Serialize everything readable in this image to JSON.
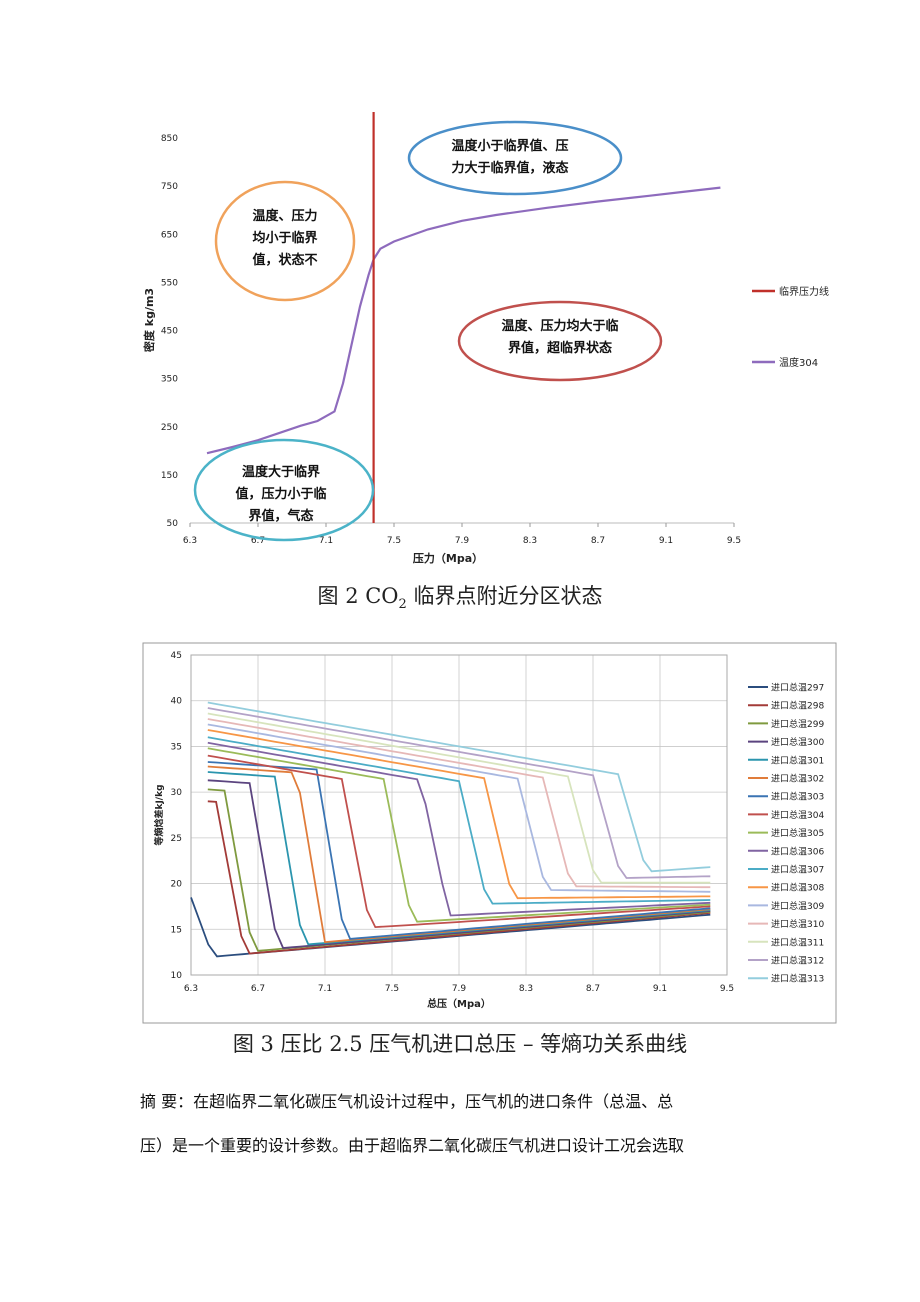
{
  "figure2": {
    "caption_prefix": "图 2 CO",
    "caption_sub": "2",
    "caption_suffix": " 临界点附近分区状态",
    "chart_data": {
      "type": "line",
      "xlabel": "压力（Mpa）",
      "ylabel": "密度 kg/m3",
      "xlim": [
        6.3,
        9.5
      ],
      "ylim": [
        50,
        900
      ],
      "xticks": [
        "6.3",
        "6.7",
        "7.1",
        "7.5",
        "7.9",
        "8.3",
        "8.7",
        "9.1",
        "9.5"
      ],
      "yticks": [
        "50",
        "150",
        "250",
        "350",
        "450",
        "550",
        "650",
        "750",
        "850"
      ],
      "series": [
        {
          "name": "温度304",
          "color": "#8e6bbd",
          "x": [
            6.4,
            6.55,
            6.7,
            6.85,
            6.95,
            7.05,
            7.15,
            7.2,
            7.25,
            7.3,
            7.35,
            7.38,
            7.42,
            7.5,
            7.7,
            7.9,
            8.1,
            8.4,
            8.7,
            9.0,
            9.2,
            9.42
          ],
          "y": [
            195,
            208,
            222,
            240,
            252,
            262,
            282,
            340,
            420,
            500,
            565,
            598,
            620,
            635,
            660,
            678,
            690,
            705,
            718,
            730,
            738,
            747
          ]
        },
        {
          "name": "临界压力线",
          "color": "#c0302a",
          "vertical_x": 7.38
        }
      ],
      "legend_position": "right",
      "annotations": [
        {
          "lines": [
            "温度小于临界值、压",
            "力大于临界值，液态"
          ],
          "color": "#4a8fc9"
        },
        {
          "lines": [
            "温度、压力",
            "均小于临界",
            "值，状态不"
          ],
          "color": "#f0a25b"
        },
        {
          "lines": [
            "温度、压力均大于临",
            "界值，超临界状态"
          ],
          "color": "#c0504d"
        },
        {
          "lines": [
            "温度大于临界",
            "值，压力小于临",
            "界值，气态"
          ],
          "color": "#4bb3c8"
        }
      ]
    }
  },
  "figure3": {
    "caption": "图 3 压比 2.5 压气机进口总压 – 等熵功关系曲线",
    "chart_data": {
      "type": "line",
      "xlabel": "总压（Mpa）",
      "ylabel": "等熵焓差kJ/kg",
      "xlim": [
        6.3,
        9.5
      ],
      "ylim": [
        10,
        45
      ],
      "xticks": [
        "6.3",
        "6.7",
        "7.1",
        "7.5",
        "7.9",
        "8.3",
        "8.7",
        "9.1",
        "9.5"
      ],
      "yticks": [
        "10",
        "15",
        "20",
        "25",
        "30",
        "35",
        "40",
        "45"
      ],
      "grid": true,
      "legend_position": "right",
      "series": [
        {
          "name": "进口总温297",
          "color": "#2b4d7e",
          "start": 20.5,
          "drop": 6.31,
          "cliff": 12.0,
          "end": 16.6
        },
        {
          "name": "进口总温298",
          "color": "#a33b38",
          "start": 29.0,
          "drop": 6.5,
          "cliff": 12.3,
          "end": 16.8
        },
        {
          "name": "进口总温299",
          "color": "#7f9a3f",
          "start": 30.3,
          "drop": 6.55,
          "cliff": 12.6,
          "end": 16.9
        },
        {
          "name": "进口总温300",
          "color": "#5b447f",
          "start": 31.3,
          "drop": 6.7,
          "cliff": 12.9,
          "end": 17.0
        },
        {
          "name": "进口总温301",
          "color": "#2b95ae",
          "start": 32.2,
          "drop": 6.85,
          "cliff": 13.3,
          "end": 17.1
        },
        {
          "name": "进口总温302",
          "color": "#e07c3a",
          "start": 32.8,
          "drop": 6.98,
          "cliff": 13.6,
          "end": 17.2
        },
        {
          "name": "进口总温303",
          "color": "#3a74b3",
          "start": 33.3,
          "drop": 7.1,
          "cliff": 13.9,
          "end": 17.3
        },
        {
          "name": "进口总温304",
          "color": "#c0504d",
          "start": 34.0,
          "drop": 7.25,
          "cliff": 15.2,
          "end": 17.5
        },
        {
          "name": "进口总温305",
          "color": "#9bbb59",
          "start": 34.8,
          "drop": 7.5,
          "cliff": 15.8,
          "end": 17.7
        },
        {
          "name": "进口总温306",
          "color": "#8064a2",
          "start": 35.4,
          "drop": 7.72,
          "cliff": 16.5,
          "end": 17.9
        },
        {
          "name": "进口总温307",
          "color": "#4bacc6",
          "start": 36.0,
          "drop": 7.95,
          "cliff": 17.8,
          "end": 18.2
        },
        {
          "name": "进口总温308",
          "color": "#f79646",
          "start": 36.8,
          "drop": 8.1,
          "cliff": 18.4,
          "end": 18.6
        },
        {
          "name": "进口总温309",
          "color": "#a9b8e0",
          "start": 37.4,
          "drop": 8.3,
          "cliff": 19.3,
          "end": 19.1
        },
        {
          "name": "进口总温310",
          "color": "#e6b8b7",
          "start": 38.0,
          "drop": 8.45,
          "cliff": 19.7,
          "end": 19.6
        },
        {
          "name": "进口总温311",
          "color": "#d7e4bd",
          "start": 38.6,
          "drop": 8.6,
          "cliff": 20.1,
          "end": 20.1
        },
        {
          "name": "进口总温312",
          "color": "#b3a2c7",
          "start": 39.2,
          "drop": 8.75,
          "cliff": 20.6,
          "end": 20.8
        },
        {
          "name": "进口总温313",
          "color": "#93cddd",
          "start": 39.8,
          "drop": 8.9,
          "cliff": 21.3,
          "end": 21.8
        }
      ]
    }
  },
  "abstract": {
    "line1": "摘  要：在超临界二氧化碳压气机设计过程中，压气机的进口条件（总温、总",
    "line2": "压）是一个重要的设计参数。由于超临界二氧化碳压气机进口设计工况会选取"
  }
}
